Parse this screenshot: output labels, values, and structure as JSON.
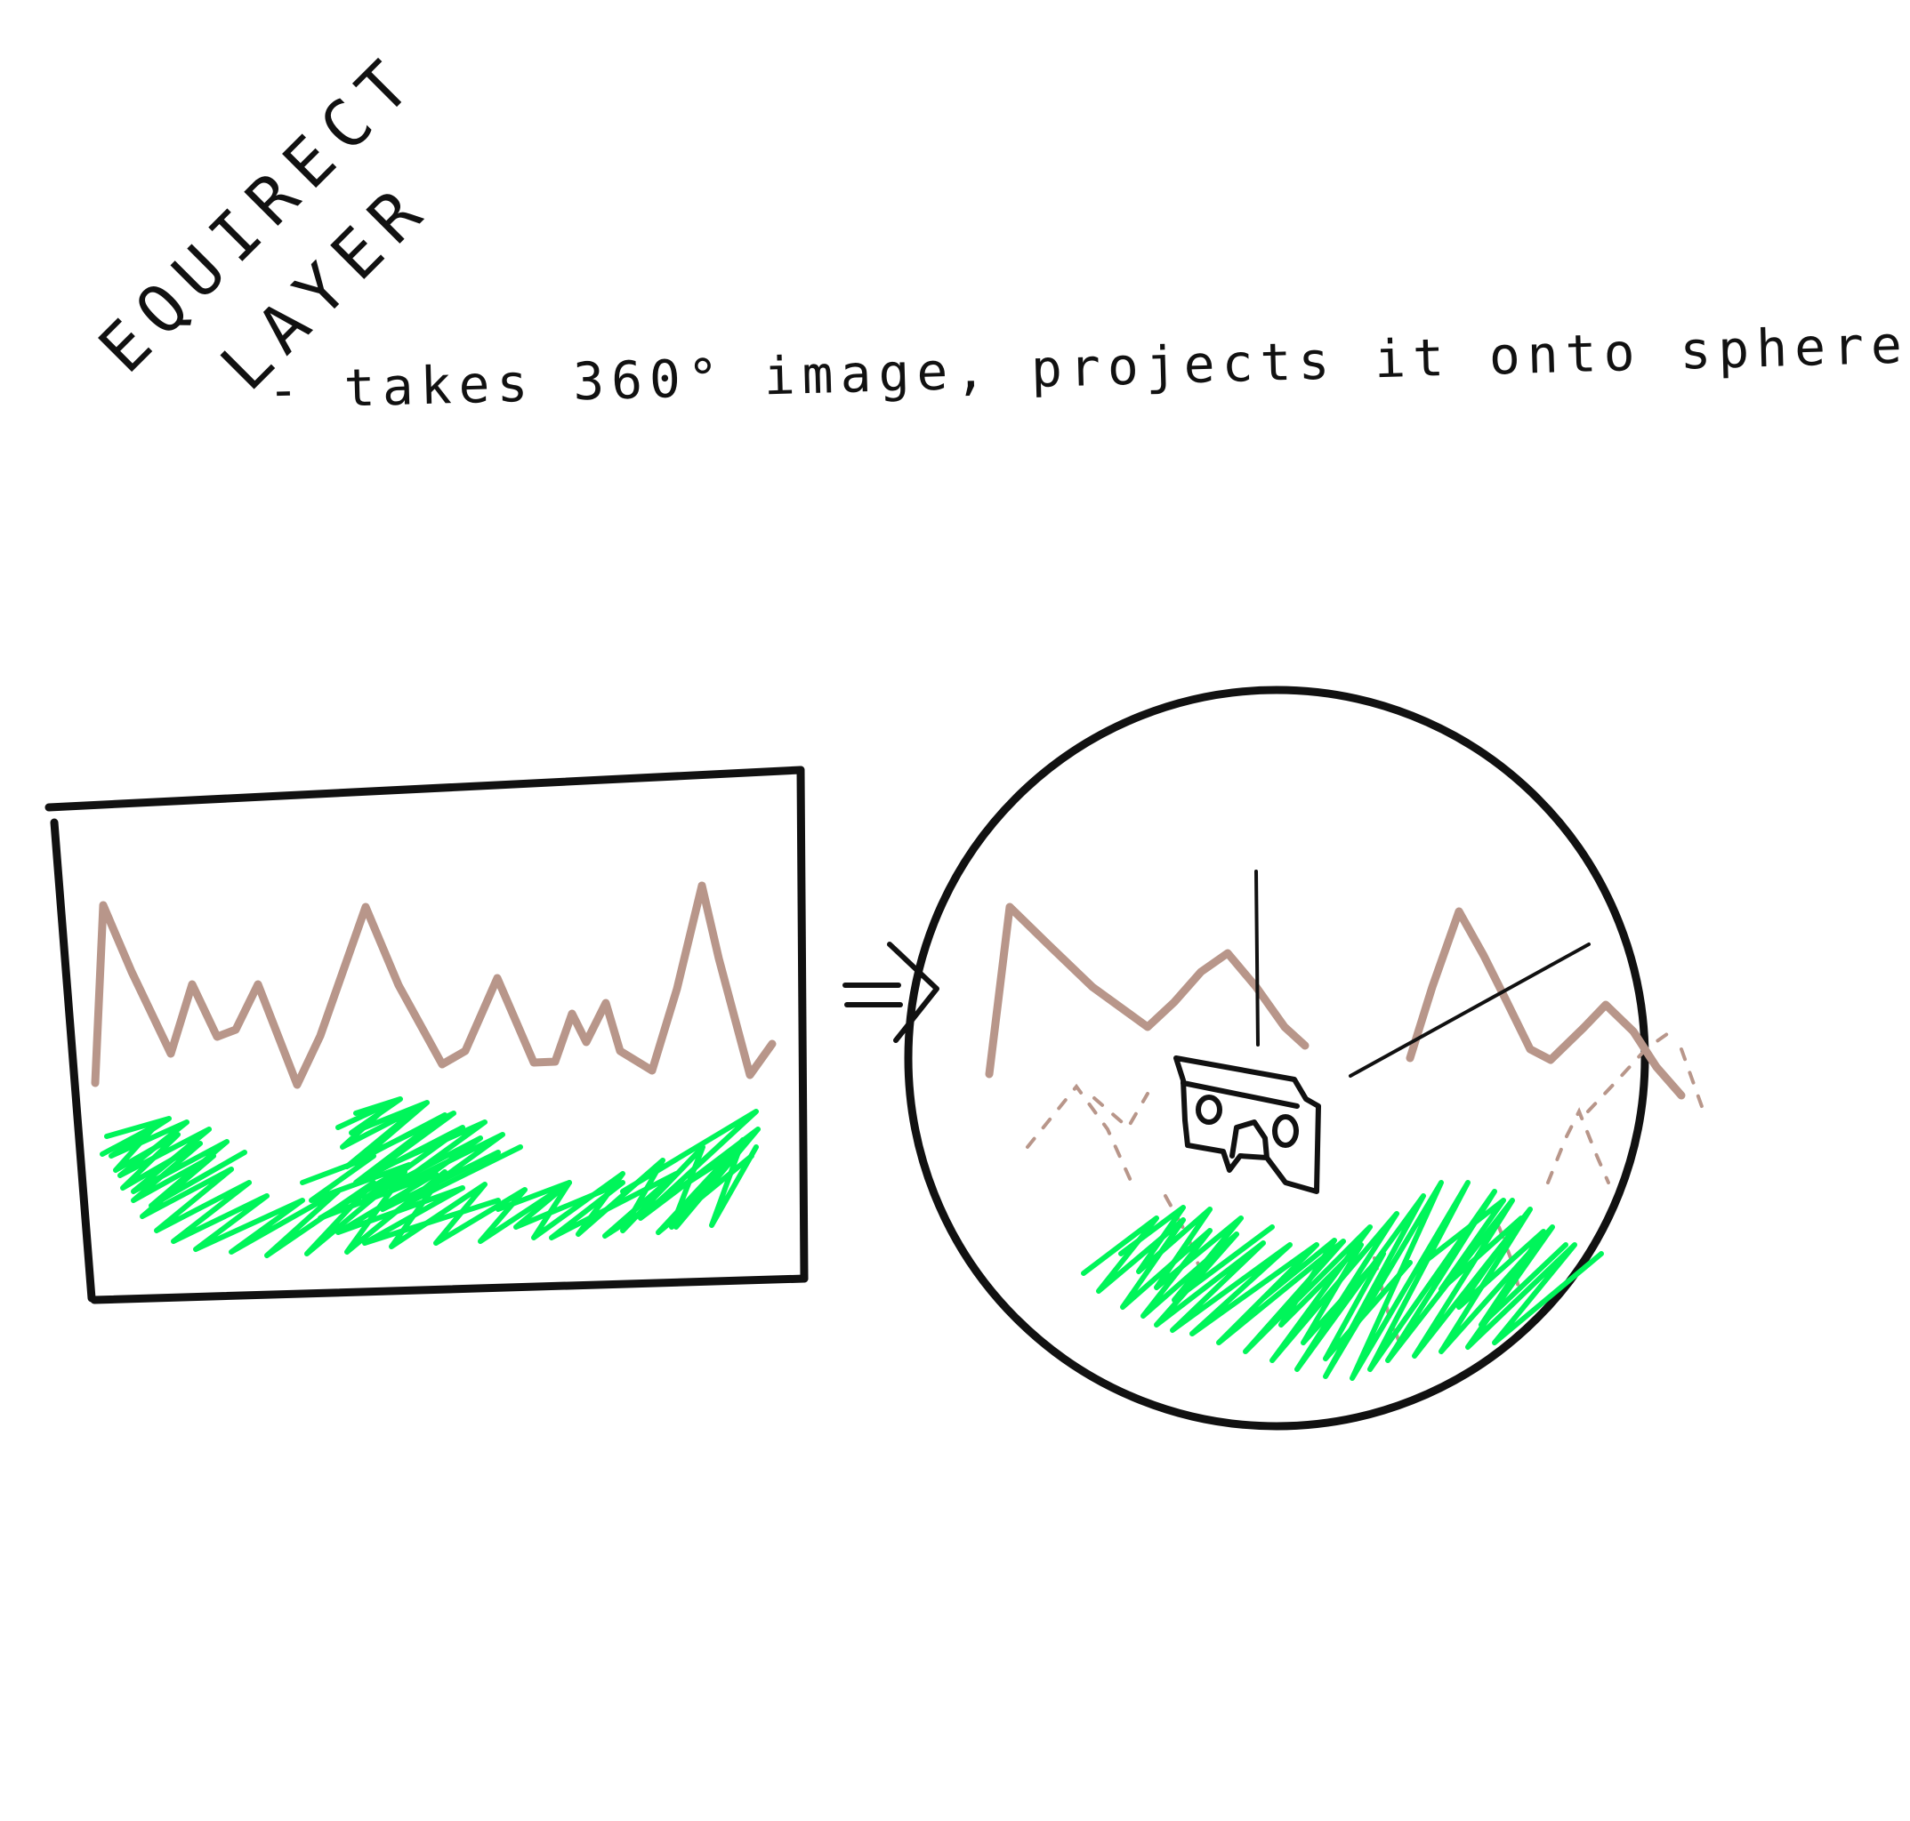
{
  "title": {
    "line1": "EQUIRECT",
    "line2": "LAYER"
  },
  "caption": "- takes 360° image, projects it onto sphere",
  "colors": {
    "ink": "#111111",
    "mountain": "#b8968a",
    "grass": "#00f55a",
    "background": "#ffffff"
  },
  "icons": {
    "arrow": "double-arrow-right-icon",
    "viewer": "vr-headset-icon"
  }
}
